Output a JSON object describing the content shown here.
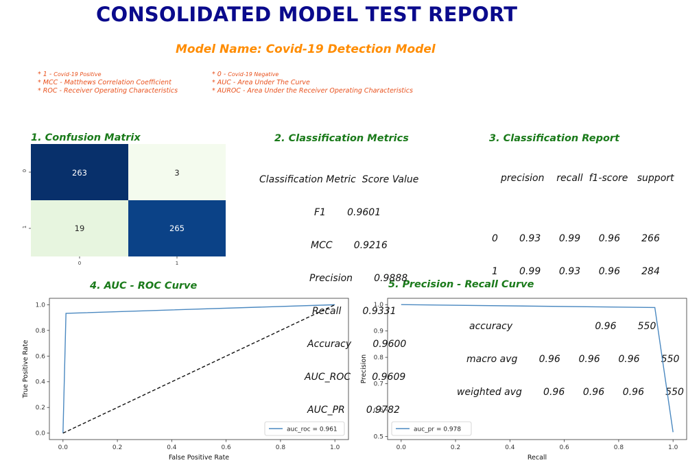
{
  "header": {
    "title": "CONSOLIDATED MODEL TEST REPORT",
    "model_name": "Model Name: Covid-19 Detection Model"
  },
  "legend_notes": {
    "left": [
      {
        "prefix": "* 1 - ",
        "text": "Covid-19 Positive"
      },
      {
        "prefix": "",
        "text": "* MCC - Matthews Correlation Coefficient"
      },
      {
        "prefix": "",
        "text": "* ROC - Receiver Operating Characteristics"
      }
    ],
    "right": [
      {
        "prefix": "* 0 - ",
        "text": "Covid-19 Negative"
      },
      {
        "prefix": "",
        "text": "* AUC - Area Under The Curve"
      },
      {
        "prefix": "",
        "text": "* AUROC - Area Under the Receiver Operating    Characteristics"
      }
    ]
  },
  "sections": {
    "confusion": "1. Confusion Matrix",
    "metrics": "2. Classification Metrics",
    "report": "3. Classification Report",
    "roc": "4. AUC - ROC Curve",
    "pr": "5. Precision - Recall Curve"
  },
  "metrics_table": {
    "header": "Classification Metric  Score Value",
    "rows": [
      "F1       0.9601",
      "MCC       0.9216",
      "Precision       0.9888",
      "Recall       0.9331",
      "Accuracy       0.9600",
      "AUC_ROC       0.9609",
      "AUC_PR       0.9782"
    ]
  },
  "classification_report": {
    "header": "precision    recall  f1-score   support",
    "rows": [
      "0       0.93      0.99      0.96       266",
      "1       0.99      0.93      0.96       284",
      "",
      "accuracy                           0.96       550",
      "macro avg       0.96      0.96      0.96       550",
      "weighted avg       0.96      0.96      0.96       550"
    ]
  },
  "colors": {
    "dark_blue": "#08306b",
    "mid_blue": "#0b4287",
    "light_green": "#f4fbee",
    "pale_green": "#e7f5df",
    "line_blue": "#4a88c0"
  },
  "chart_data": [
    {
      "type": "heatmap",
      "title": "1. Confusion Matrix",
      "x_ticks": [
        "0",
        "1"
      ],
      "y_ticks": [
        "0",
        "1"
      ],
      "values": [
        [
          263,
          3
        ],
        [
          19,
          265
        ]
      ]
    },
    {
      "type": "line",
      "title": "4. AUC - ROC Curve",
      "xlabel": "False Positive Rate",
      "ylabel": "True Positive Rate",
      "xlim": [
        -0.05,
        1.05
      ],
      "ylim": [
        -0.05,
        1.05
      ],
      "x_ticks": [
        0.0,
        0.2,
        0.4,
        0.6,
        0.8,
        1.0
      ],
      "y_ticks": [
        0.0,
        0.2,
        0.4,
        0.6,
        0.8,
        1.0
      ],
      "series": [
        {
          "name": "auc_roc = 0.961",
          "x": [
            0.0,
            0.011,
            1.0
          ],
          "y": [
            0.0,
            0.933,
            1.0
          ],
          "style": "solid"
        },
        {
          "name": "chance",
          "x": [
            0.0,
            1.0
          ],
          "y": [
            0.0,
            1.0
          ],
          "style": "dashed"
        }
      ],
      "legend": "auc_roc = 0.961",
      "legend_position": "lower-right"
    },
    {
      "type": "line",
      "title": "5. Precision - Recall Curve",
      "xlabel": "Recall",
      "ylabel": "Precision",
      "xlim": [
        -0.05,
        1.05
      ],
      "ylim": [
        0.488,
        1.024
      ],
      "x_ticks": [
        0.0,
        0.2,
        0.4,
        0.6,
        0.8,
        1.0
      ],
      "y_ticks": [
        0.5,
        0.6,
        0.7,
        0.8,
        0.9,
        1.0
      ],
      "series": [
        {
          "name": "auc_pr = 0.978",
          "x": [
            0.0,
            0.933,
            1.0
          ],
          "y": [
            1.0,
            0.989,
            0.516
          ],
          "style": "solid"
        }
      ],
      "legend": "auc_pr = 0.978",
      "legend_position": "lower-left"
    }
  ]
}
